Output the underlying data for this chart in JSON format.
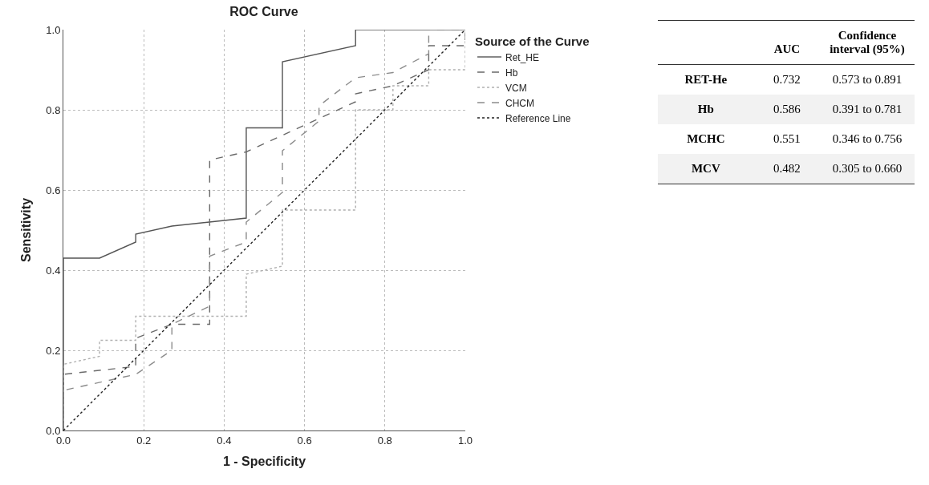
{
  "chart_data": [
    {
      "type": "line",
      "title": "ROC Curve",
      "xlabel": "1 - Specificity",
      "ylabel": "Sensitivity",
      "legend_title": "Source of the Curve",
      "legend": "top right",
      "grid": true,
      "marker": "none",
      "xlim": [
        0,
        1
      ],
      "ylim": [
        0,
        1
      ],
      "xticks": [
        {
          "value": 0,
          "label": "0.0"
        },
        {
          "value": 0.2,
          "label": "0.2"
        },
        {
          "value": 0.4,
          "label": "0.4"
        },
        {
          "value": 0.6,
          "label": "0.6"
        },
        {
          "value": 0.8,
          "label": "0.8"
        },
        {
          "value": 1,
          "label": "1.0"
        }
      ],
      "yticks": [
        {
          "value": 0,
          "label": "0.0"
        },
        {
          "value": 0.2,
          "label": "0.2"
        },
        {
          "value": 0.4,
          "label": "0.4"
        },
        {
          "value": 0.6,
          "label": "0.6"
        },
        {
          "value": 0.8,
          "label": "0.8"
        },
        {
          "value": 1,
          "label": "1.0"
        }
      ],
      "series": [
        {
          "name": "Ret_HE",
          "color": "#555555",
          "line_style": "solid",
          "x": [
            0,
            0,
            0.09,
            0.18,
            0.18,
            0.27,
            0.455,
            0.455,
            0.545,
            0.545,
            0.727,
            0.727,
            1
          ],
          "values": [
            0,
            0.43,
            0.43,
            0.47,
            0.49,
            0.51,
            0.53,
            0.755,
            0.755,
            0.92,
            0.96,
            1,
            1
          ]
        },
        {
          "name": "Hb",
          "color": "#6a6a6a",
          "line_style": "dashed",
          "x": [
            0,
            0,
            0.18,
            0.18,
            0.27,
            0.364,
            0.364,
            0.455,
            0.727,
            0.727,
            0.82,
            0.909,
            0.909,
            1,
            1
          ],
          "values": [
            0,
            0.14,
            0.16,
            0.23,
            0.265,
            0.265,
            0.675,
            0.695,
            0.82,
            0.84,
            0.86,
            0.9,
            0.96,
            0.96,
            1
          ]
        },
        {
          "name": "VCM",
          "color": "#b0b0b0",
          "line_style": "dotted",
          "x": [
            0,
            0,
            0.09,
            0.09,
            0.18,
            0.18,
            0.455,
            0.455,
            0.545,
            0.545,
            0.727,
            0.727,
            0.82,
            0.82,
            0.909,
            0.909,
            1,
            1
          ],
          "values": [
            0,
            0.165,
            0.185,
            0.225,
            0.225,
            0.285,
            0.285,
            0.39,
            0.41,
            0.55,
            0.55,
            0.8,
            0.8,
            0.86,
            0.86,
            0.9,
            0.9,
            1
          ]
        },
        {
          "name": "CHCM",
          "color": "#8c8c8c",
          "line_style": "dashed",
          "x": [
            0,
            0,
            0.18,
            0.27,
            0.27,
            0.364,
            0.364,
            0.455,
            0.455,
            0.545,
            0.545,
            0.636,
            0.636,
            0.727,
            0.82,
            0.909,
            0.909,
            1
          ],
          "values": [
            0,
            0.1,
            0.14,
            0.2,
            0.265,
            0.31,
            0.435,
            0.47,
            0.52,
            0.594,
            0.698,
            0.772,
            0.81,
            0.88,
            0.893,
            0.94,
            1,
            1
          ]
        },
        {
          "name": "Reference Line",
          "color": "#222222",
          "line_style": "dotted",
          "x": [
            0,
            1
          ],
          "values": [
            0,
            1
          ]
        }
      ]
    },
    {
      "type": "other",
      "categories": [
        "RET-He",
        "Hb",
        "MCHC",
        "MCV"
      ],
      "data_labels": true,
      "series": [
        {
          "name": "AUC",
          "values": [
            0.732,
            0.586,
            0.551,
            0.482
          ]
        },
        {
          "name": "Confidence interval (95%)",
          "values": [
            null,
            null,
            null,
            null
          ],
          "value_labels": [
            "0.573 to 0.891",
            "0.391 to 0.781",
            "0.346 to 0.756",
            "0.305 to 0.660"
          ]
        }
      ]
    }
  ]
}
